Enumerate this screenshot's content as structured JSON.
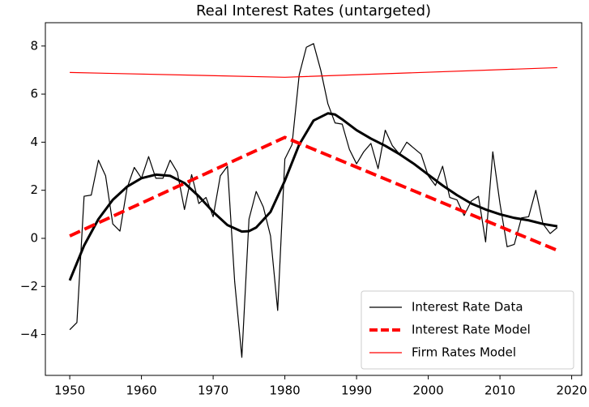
{
  "chart_data": {
    "type": "line",
    "title": "Real Interest Rates (untargeted)",
    "xlim": [
      1946.6,
      2021.4
    ],
    "ylim": [
      -5.7,
      8.97
    ],
    "xticks": [
      1950,
      1960,
      1970,
      1980,
      1990,
      2000,
      2010,
      2020
    ],
    "yticks": [
      {
        "value": -4,
        "label": "−4"
      },
      {
        "value": -2,
        "label": "−2"
      },
      0,
      2,
      4,
      6,
      8
    ],
    "grid": false,
    "legend": "lower right",
    "series": [
      {
        "name": "Interest Rate Data",
        "color": "#000000",
        "linewidth": 1.2,
        "linestyle": "solid",
        "x": [
          1950,
          1951,
          1952,
          1953,
          1954,
          1955,
          1956,
          1957,
          1958,
          1959,
          1960,
          1961,
          1962,
          1963,
          1964,
          1965,
          1966,
          1967,
          1968,
          1969,
          1970,
          1971,
          1972,
          1973,
          1974,
          1975,
          1976,
          1977,
          1978,
          1979,
          1980,
          1981,
          1982,
          1983,
          1984,
          1985,
          1986,
          1987,
          1988,
          1989,
          1990,
          1991,
          1992,
          1993,
          1994,
          1995,
          1996,
          1997,
          1998,
          1999,
          2000,
          2001,
          2002,
          2003,
          2004,
          2005,
          2006,
          2007,
          2008,
          2009,
          2010,
          2011,
          2012,
          2013,
          2014,
          2015,
          2016,
          2017,
          2018
        ],
        "values": [
          -3.8,
          -3.5,
          1.75,
          1.8,
          3.25,
          2.6,
          0.6,
          0.3,
          2.1,
          2.95,
          2.5,
          3.4,
          2.5,
          2.5,
          3.25,
          2.75,
          1.2,
          2.65,
          1.45,
          1.7,
          0.9,
          2.6,
          3.0,
          -1.8,
          -4.95,
          0.8,
          1.95,
          1.3,
          0.1,
          -3.0,
          3.3,
          3.9,
          6.8,
          7.95,
          8.1,
          7.0,
          5.6,
          4.8,
          4.75,
          3.7,
          3.1,
          3.6,
          3.95,
          2.9,
          4.5,
          3.85,
          3.5,
          4.0,
          3.75,
          3.5,
          2.6,
          2.2,
          3.0,
          1.7,
          1.6,
          0.95,
          1.55,
          1.75,
          -0.15,
          3.6,
          1.45,
          -0.35,
          -0.25,
          0.85,
          0.9,
          2.0,
          0.6,
          0.2,
          0.45
        ]
      },
      {
        "color": "#000000",
        "linewidth": 3,
        "linestyle": "solid",
        "x": [
          1950,
          1952,
          1954,
          1956,
          1958,
          1960,
          1962,
          1964,
          1966,
          1968,
          1970,
          1972,
          1974,
          1975,
          1976,
          1978,
          1980,
          1982,
          1984,
          1986,
          1987,
          1988,
          1990,
          1992,
          1994,
          1996,
          1998,
          2000,
          2002,
          2004,
          2006,
          2008,
          2010,
          2012,
          2014,
          2016,
          2018
        ],
        "values": [
          -1.75,
          -0.3,
          0.8,
          1.6,
          2.15,
          2.5,
          2.65,
          2.6,
          2.3,
          1.75,
          1.1,
          0.55,
          0.28,
          0.3,
          0.45,
          1.1,
          2.4,
          3.9,
          4.9,
          5.2,
          5.15,
          4.95,
          4.5,
          4.15,
          3.85,
          3.5,
          3.1,
          2.65,
          2.2,
          1.8,
          1.45,
          1.2,
          1.0,
          0.85,
          0.75,
          0.6,
          0.5
        ]
      },
      {
        "name": "Interest Rate Model",
        "color": "#ff0000",
        "linewidth": 4,
        "linestyle": "dashed",
        "x": [
          1950,
          1980,
          2018
        ],
        "values": [
          0.1,
          4.2,
          -0.5
        ]
      },
      {
        "name": "Firm Rates Model",
        "color": "#ff0000",
        "linewidth": 1.2,
        "linestyle": "solid",
        "x": [
          1950,
          1980,
          2018
        ],
        "values": [
          6.9,
          6.7,
          7.1
        ]
      }
    ]
  }
}
